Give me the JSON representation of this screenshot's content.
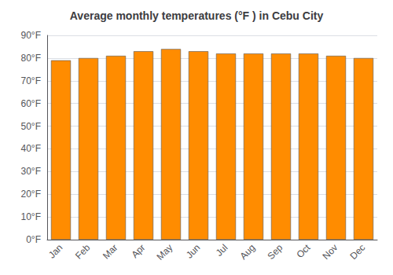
{
  "chart_data": {
    "type": "bar",
    "title": "Average monthly temperatures (°F ) in Cebu City",
    "categories": [
      "Jan",
      "Feb",
      "Mar",
      "Apr",
      "May",
      "Jun",
      "Jul",
      "Aug",
      "Sep",
      "Oct",
      "Nov",
      "Dec"
    ],
    "values": [
      79,
      80,
      81,
      83,
      84,
      83,
      82,
      82,
      82,
      82,
      81,
      80
    ],
    "color": "#FF8C00",
    "ylim": [
      0,
      90
    ],
    "yticks": [
      {
        "value": 0,
        "label": "0°F"
      },
      {
        "value": 10,
        "label": "10°F"
      },
      {
        "value": 20,
        "label": "20°F"
      },
      {
        "value": 30,
        "label": "30°F"
      },
      {
        "value": 40,
        "label": "40°F"
      },
      {
        "value": 50,
        "label": "50°F"
      },
      {
        "value": 60,
        "label": "60°F"
      },
      {
        "value": 70,
        "label": "70°F"
      },
      {
        "value": 80,
        "label": "80°F"
      },
      {
        "value": 90,
        "label": "90°F"
      }
    ],
    "grid": true
  }
}
